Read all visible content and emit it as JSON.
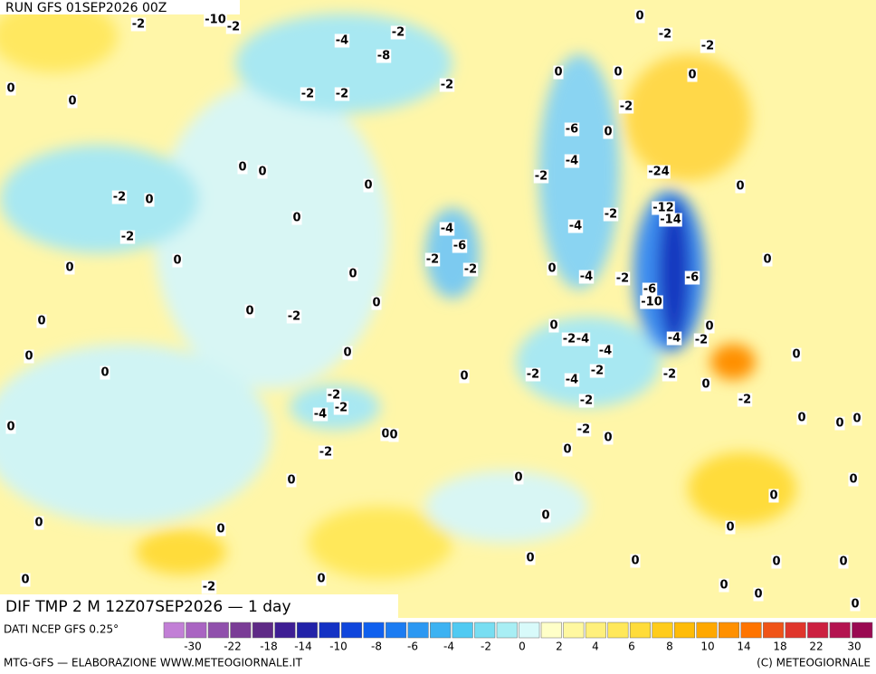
{
  "header": {
    "run": "RUN GFS 01SEP2026 00Z"
  },
  "map": {
    "title": "DIF TMP 2 M 12Z07SEP2026 — 1 day",
    "labels": [
      -2,
      -10,
      -2,
      -4,
      -2,
      -8,
      -2,
      -2,
      -2,
      0,
      0,
      0,
      -2,
      -2,
      0,
      0,
      0,
      -2,
      -6,
      0,
      -4,
      0,
      0,
      -2,
      -24,
      0,
      0,
      -2,
      0,
      -12,
      -14,
      -2,
      -4,
      0,
      -4,
      -6,
      -2,
      -2,
      -2,
      0,
      0,
      0,
      0,
      -4,
      -2,
      -6,
      -6,
      -10,
      0,
      0,
      0,
      -2,
      0,
      0,
      0,
      -2,
      -4,
      -4,
      -2,
      -4,
      0,
      0,
      0,
      0,
      0,
      -2,
      -4,
      -2,
      -2,
      0,
      -2,
      -2,
      -4,
      -2,
      -2,
      0,
      0,
      -2,
      0,
      0,
      0,
      0,
      0,
      -2,
      0,
      0,
      0,
      0,
      0,
      0,
      0,
      0,
      0,
      0,
      0,
      0,
      0,
      -2,
      0,
      0,
      0,
      0,
      0
    ]
  },
  "legend": {
    "source": "DATI NCEP GFS 0.25°",
    "colors": [
      "#c27fd6",
      "#a964c2",
      "#9050ac",
      "#7a3c96",
      "#5e2a86",
      "#3e1e94",
      "#2222a8",
      "#1432c4",
      "#1046dc",
      "#1060ee",
      "#1c7cf2",
      "#2c98f2",
      "#3cb2f2",
      "#50caf2",
      "#78def2",
      "#a8eef4",
      "#d8fafa",
      "#ffffc8",
      "#fff8a0",
      "#fff07c",
      "#ffe85a",
      "#ffdc3a",
      "#ffcc1c",
      "#ffbc08",
      "#ffa800",
      "#ff9000",
      "#ff7400",
      "#f05418",
      "#e0362c",
      "#cc2040",
      "#b41450",
      "#9a0a52"
    ],
    "ticks": [
      -30,
      -22,
      -18,
      -14,
      -10,
      -8,
      -6,
      -4,
      -2,
      0,
      2,
      4,
      6,
      8,
      10,
      14,
      18,
      22,
      30
    ]
  },
  "footer": {
    "left": "MTG-GFS — ELABORAZIONE WWW.METEOGIORNALE.IT",
    "right": "(C) METEOGIORNALE"
  }
}
